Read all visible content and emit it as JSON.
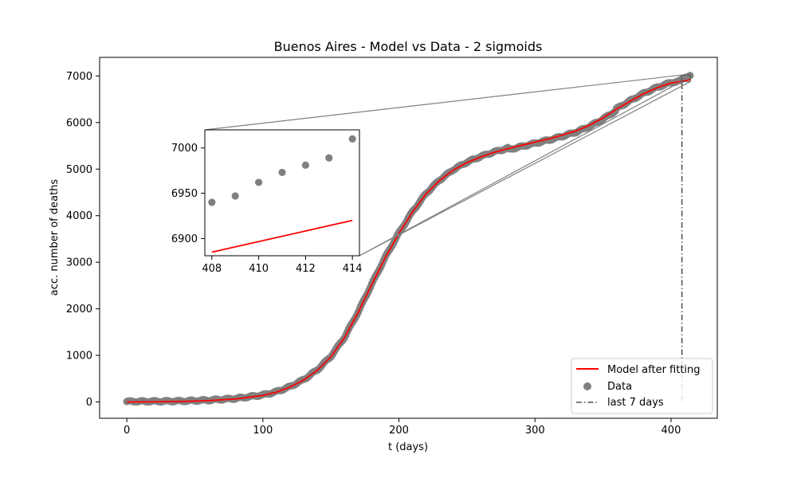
{
  "chart_data": {
    "type": "scatter",
    "title": "Buenos Aires - Model vs Data - 2 sigmoids",
    "xlabel": "t (days)",
    "ylabel": "acc. number of deaths",
    "xlim": [
      -20,
      434
    ],
    "ylim": [
      -350,
      7400
    ],
    "xticks": [
      0,
      100,
      200,
      300,
      400
    ],
    "yticks": [
      0,
      1000,
      2000,
      3000,
      4000,
      5000,
      6000,
      7000
    ],
    "grid": false,
    "legend_position": "lower-right",
    "series": [
      {
        "name": "Model after fitting",
        "kind": "line",
        "color": "#ff0000"
      },
      {
        "name": "Data",
        "kind": "scatter",
        "color": "#808080"
      },
      {
        "name": "last 7 days",
        "kind": "dashdot",
        "color": "#555555",
        "x": 408
      }
    ],
    "model_points": [
      [
        0,
        0
      ],
      [
        20,
        3
      ],
      [
        40,
        10
      ],
      [
        60,
        28
      ],
      [
        80,
        65
      ],
      [
        100,
        140
      ],
      [
        110,
        210
      ],
      [
        120,
        320
      ],
      [
        130,
        470
      ],
      [
        140,
        680
      ],
      [
        150,
        970
      ],
      [
        160,
        1380
      ],
      [
        170,
        1920
      ],
      [
        180,
        2520
      ],
      [
        190,
        3100
      ],
      [
        200,
        3620
      ],
      [
        210,
        4080
      ],
      [
        220,
        4470
      ],
      [
        230,
        4760
      ],
      [
        240,
        4980
      ],
      [
        250,
        5140
      ],
      [
        260,
        5260
      ],
      [
        270,
        5360
      ],
      [
        280,
        5440
      ],
      [
        290,
        5510
      ],
      [
        300,
        5580
      ],
      [
        310,
        5650
      ],
      [
        320,
        5730
      ],
      [
        330,
        5820
      ],
      [
        340,
        5940
      ],
      [
        350,
        6100
      ],
      [
        360,
        6290
      ],
      [
        370,
        6460
      ],
      [
        380,
        6620
      ],
      [
        390,
        6750
      ],
      [
        400,
        6850
      ],
      [
        408,
        6885
      ],
      [
        414,
        6920
      ]
    ],
    "inset": {
      "xlim": [
        407.7,
        414.3
      ],
      "ylim": [
        6881,
        7020
      ],
      "xticks": [
        408,
        410,
        412,
        414
      ],
      "yticks": [
        6900,
        6950,
        7000
      ],
      "data_x": [
        408,
        409,
        410,
        411,
        412,
        413,
        414
      ],
      "data_y": [
        6940,
        6947,
        6962,
        6973,
        6981,
        6989,
        7010
      ],
      "model_x": [
        408,
        414
      ],
      "model_y": [
        6885,
        6920
      ]
    }
  }
}
